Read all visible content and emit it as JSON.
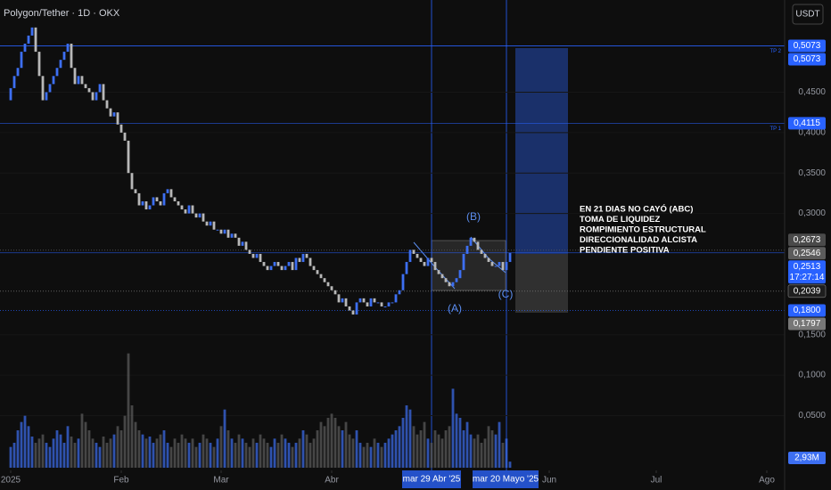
{
  "chart_data": {
    "type": "candlestick",
    "title": "Polygon/Tether · 1D · OKX",
    "currency": "USDT",
    "open": 0.44,
    "close": [
      0.455,
      0.47,
      0.48,
      0.5,
      0.51,
      0.52,
      0.53,
      0.5,
      0.47,
      0.44,
      0.45,
      0.46,
      0.47,
      0.48,
      0.49,
      0.5,
      0.51,
      0.48,
      0.46,
      0.47,
      0.46,
      0.455,
      0.45,
      0.44,
      0.45,
      0.46,
      0.44,
      0.43,
      0.42,
      0.425,
      0.41,
      0.4,
      0.39,
      0.35,
      0.33,
      0.325,
      0.31,
      0.315,
      0.305,
      0.31,
      0.32,
      0.315,
      0.31,
      0.325,
      0.33,
      0.32,
      0.315,
      0.31,
      0.305,
      0.3,
      0.31,
      0.3,
      0.295,
      0.3,
      0.29,
      0.285,
      0.29,
      0.28,
      0.28,
      0.275,
      0.28,
      0.27,
      0.275,
      0.27,
      0.26,
      0.265,
      0.255,
      0.25,
      0.245,
      0.25,
      0.24,
      0.235,
      0.23,
      0.235,
      0.24,
      0.235,
      0.23,
      0.235,
      0.24,
      0.23,
      0.245,
      0.24,
      0.25,
      0.245,
      0.235,
      0.23,
      0.225,
      0.22,
      0.215,
      0.21,
      0.205,
      0.2,
      0.19,
      0.195,
      0.185,
      0.18,
      0.175,
      0.19,
      0.195,
      0.19,
      0.185,
      0.195,
      0.19,
      0.19,
      0.185,
      0.185,
      0.19,
      0.19,
      0.2,
      0.205,
      0.225,
      0.24,
      0.255,
      0.25,
      0.245,
      0.24,
      0.235,
      0.245,
      0.24,
      0.23,
      0.225,
      0.22,
      0.215,
      0.21,
      0.215,
      0.22,
      0.23,
      0.25,
      0.26,
      0.27,
      0.265,
      0.255,
      0.25,
      0.245,
      0.24,
      0.235,
      0.235,
      0.24,
      0.23,
      0.24,
      0.2513
    ],
    "volume": [
      10,
      12,
      18,
      22,
      25,
      20,
      15,
      12,
      14,
      16,
      12,
      10,
      14,
      18,
      16,
      12,
      20,
      15,
      12,
      14,
      26,
      22,
      18,
      14,
      12,
      10,
      15,
      12,
      14,
      16,
      20,
      18,
      25,
      55,
      30,
      22,
      18,
      16,
      14,
      15,
      12,
      14,
      16,
      18,
      12,
      10,
      14,
      12,
      16,
      14,
      12,
      14,
      10,
      12,
      16,
      14,
      12,
      10,
      14,
      20,
      28,
      18,
      14,
      12,
      16,
      14,
      12,
      10,
      14,
      12,
      16,
      14,
      12,
      10,
      14,
      12,
      16,
      14,
      12,
      10,
      12,
      14,
      18,
      16,
      12,
      14,
      18,
      22,
      20,
      24,
      26,
      24,
      20,
      18,
      22,
      16,
      14,
      18,
      12,
      10,
      12,
      10,
      14,
      12,
      10,
      12,
      14,
      16,
      18,
      20,
      24,
      30,
      28,
      20,
      16,
      18,
      22,
      14,
      12,
      18,
      16,
      14,
      18,
      20,
      38,
      26,
      24,
      18,
      22,
      16,
      14,
      16,
      12,
      14,
      20,
      18,
      16,
      22,
      12,
      14,
      2.93
    ],
    "volume_label": {
      "value": 2.93,
      "label": "2,93M"
    },
    "vlim": [
      0,
      60
    ],
    "up_color": "#3d6ff2",
    "down_color": "#b8b8b8",
    "xlim": [
      -3,
      217
    ],
    "xticks": [
      {
        "value": 0,
        "label": "2025"
      },
      {
        "value": 31,
        "label": "Feb"
      },
      {
        "value": 59,
        "label": "Mar"
      },
      {
        "value": 90,
        "label": "Abr"
      },
      {
        "value": 151,
        "label": "Jun"
      },
      {
        "value": 181,
        "label": "Jul"
      },
      {
        "value": 212,
        "label": "Ago"
      }
    ],
    "ylim": [
      -0.02,
      0.564
    ],
    "yticks": [
      {
        "value": 0.05,
        "label": "0,0500"
      },
      {
        "value": 0.1,
        "label": "0,1000"
      },
      {
        "value": 0.15,
        "label": "0,1500"
      },
      {
        "value": 0.3,
        "label": "0,3000"
      },
      {
        "value": 0.35,
        "label": "0,3500"
      },
      {
        "value": 0.4,
        "label": "0,4000"
      },
      {
        "value": 0.45,
        "label": "0,4500"
      }
    ],
    "levels": [
      {
        "value": 0.5073,
        "label": "0,5073",
        "color": "#2962ff",
        "tag": "TP 2",
        "style": "solid"
      },
      {
        "value": 0.5073,
        "label": "0,5073",
        "color": "#2962ff",
        "style": "solid"
      },
      {
        "value": 0.4115,
        "label": "0,4115",
        "color": "#2962ff",
        "tag": "TP 1",
        "style": "solid"
      },
      {
        "value": 0.2673,
        "label": "0,2673",
        "color": "#4a4a4a",
        "style": "none"
      },
      {
        "value": 0.2546,
        "label": "0,2546",
        "color": "#5c5c5c",
        "style": "dotted"
      },
      {
        "value": 0.2513,
        "label": "0,2513",
        "sub": "17:27:14",
        "color": "#2962ff",
        "style": "solid"
      },
      {
        "value": 0.2039,
        "label": "0,2039",
        "color": "#1e1e1e",
        "style": "dotted"
      },
      {
        "value": 0.18,
        "label": "0,1800",
        "color": "#2962ff",
        "style": "dotted"
      },
      {
        "value": 0.1797,
        "label": "0,1797",
        "color": "#777777",
        "style": "none"
      }
    ],
    "crosshair_labels": [
      "mar 29 Abr '25",
      "mar 20 Mayo '25"
    ],
    "waves": [
      "(A)",
      "(B)",
      "(C)"
    ],
    "annotation": [
      "EN 21 DIAS NO CAYÓ (ABC)",
      "TOMA DE LIQUIDEZ",
      "ROMPIMIENTO ESTRUCTURAL",
      "DIRECCIONALIDAD ALCISTA",
      "PENDIENTE POSITIVA"
    ]
  }
}
